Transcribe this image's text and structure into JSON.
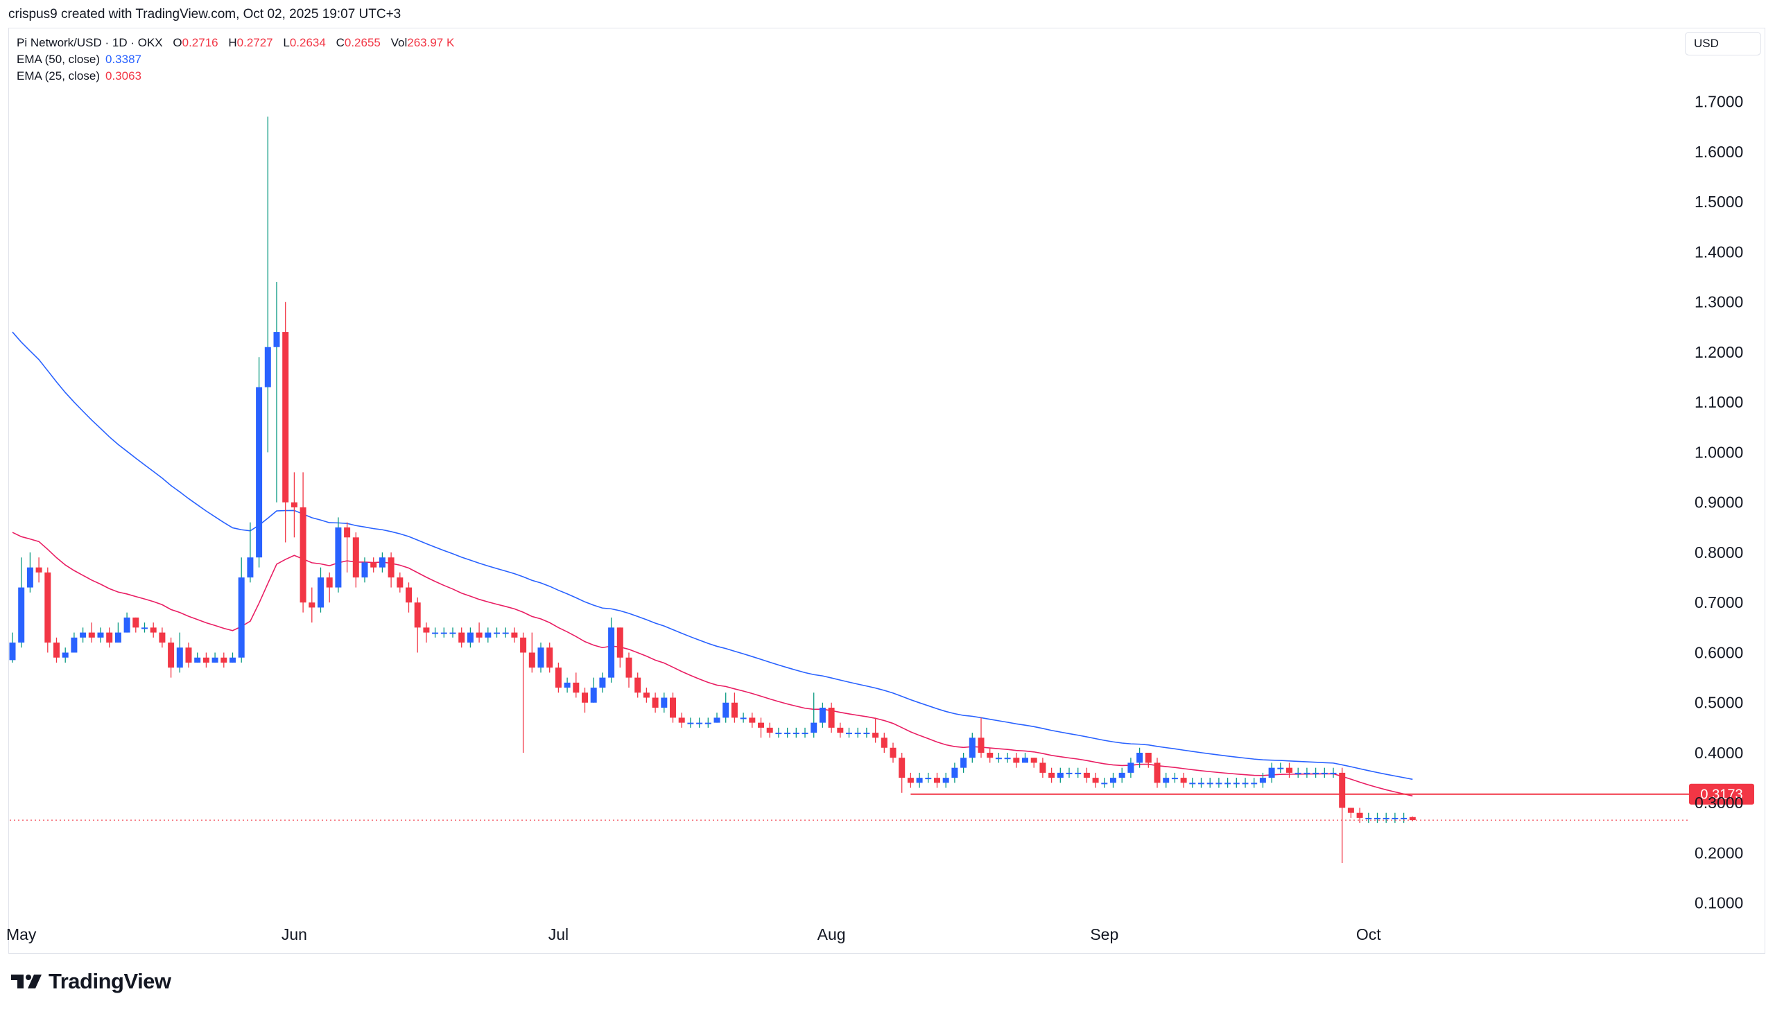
{
  "header": {
    "creator_line": "crispus9 created with TradingView.com, Oct 02, 2025 19:07 UTC+3"
  },
  "legend": {
    "symbol": "Pi Network/USD · 1D · OKX",
    "ohlc": [
      {
        "k": "O",
        "v": "0.2716"
      },
      {
        "k": "H",
        "v": "0.2727"
      },
      {
        "k": "L",
        "v": "0.2634"
      },
      {
        "k": "C",
        "v": "0.2655"
      },
      {
        "k": "Vol",
        "v": "263.97 K"
      }
    ],
    "ema50_label": "EMA (50, close)",
    "ema50_value": "0.3387",
    "ema25_label": "EMA (25, close)",
    "ema25_value": "0.3063"
  },
  "currency_button": "USD",
  "brand": {
    "name": "TradingView"
  },
  "colors": {
    "up": "#2962ff",
    "down": "#f23645",
    "ema50": "#2962ff",
    "ema25": "#e91e63",
    "level_line": "#f23645",
    "axis_text": "#131722"
  },
  "chart_data": {
    "type": "candlestick",
    "title": "Pi Network/USD · 1D · OKX",
    "ylim": [
      0.0,
      1.82
    ],
    "y_ticks": [
      "0.1000",
      "0.2000",
      "0.3000",
      "0.4000",
      "0.5000",
      "0.6000",
      "0.7000",
      "0.8000",
      "0.9000",
      "1.0000",
      "1.1000",
      "1.2000",
      "1.3000",
      "1.4000",
      "1.5000",
      "1.6000",
      "1.7000"
    ],
    "x_ticks": [
      {
        "label": "May",
        "day": 1
      },
      {
        "label": "Jun",
        "day": 32
      },
      {
        "label": "Jul",
        "day": 62
      },
      {
        "label": "Aug",
        "day": 93
      },
      {
        "label": "Sep",
        "day": 124
      },
      {
        "label": "Oct",
        "day": 154
      }
    ],
    "first_day": "Apr 22, 2025",
    "support_level": {
      "value": 0.3173,
      "label": "0.3173",
      "from_day": 102
    },
    "last_price": 0.2655,
    "candles": [
      [
        0.585,
        0.62,
        0.58,
        0.64
      ],
      [
        0.62,
        0.73,
        0.61,
        0.79
      ],
      [
        0.73,
        0.77,
        0.72,
        0.8
      ],
      [
        0.77,
        0.76,
        0.74,
        0.79
      ],
      [
        0.76,
        0.62,
        0.6,
        0.77
      ],
      [
        0.62,
        0.59,
        0.58,
        0.63
      ],
      [
        0.59,
        0.6,
        0.58,
        0.61
      ],
      [
        0.6,
        0.63,
        0.6,
        0.64
      ],
      [
        0.63,
        0.64,
        0.62,
        0.65
      ],
      [
        0.64,
        0.63,
        0.62,
        0.66
      ],
      [
        0.63,
        0.64,
        0.62,
        0.65
      ],
      [
        0.64,
        0.62,
        0.61,
        0.65
      ],
      [
        0.62,
        0.64,
        0.62,
        0.66
      ],
      [
        0.64,
        0.67,
        0.64,
        0.68
      ],
      [
        0.67,
        0.65,
        0.64,
        0.67
      ],
      [
        0.65,
        0.65,
        0.64,
        0.66
      ],
      [
        0.65,
        0.64,
        0.63,
        0.66
      ],
      [
        0.64,
        0.62,
        0.61,
        0.65
      ],
      [
        0.62,
        0.57,
        0.55,
        0.63
      ],
      [
        0.57,
        0.61,
        0.56,
        0.64
      ],
      [
        0.61,
        0.58,
        0.57,
        0.62
      ],
      [
        0.58,
        0.59,
        0.58,
        0.6
      ],
      [
        0.59,
        0.58,
        0.57,
        0.6
      ],
      [
        0.58,
        0.59,
        0.58,
        0.6
      ],
      [
        0.59,
        0.58,
        0.57,
        0.6
      ],
      [
        0.58,
        0.59,
        0.58,
        0.6
      ],
      [
        0.59,
        0.75,
        0.58,
        0.79
      ],
      [
        0.75,
        0.79,
        0.74,
        0.86
      ],
      [
        0.79,
        1.13,
        0.77,
        1.19
      ],
      [
        1.13,
        1.21,
        1.0,
        1.67
      ],
      [
        1.21,
        1.24,
        0.9,
        1.34
      ],
      [
        1.24,
        0.9,
        0.82,
        1.3
      ],
      [
        0.9,
        0.89,
        0.83,
        0.96
      ],
      [
        0.89,
        0.7,
        0.68,
        0.96
      ],
      [
        0.7,
        0.69,
        0.66,
        0.73
      ],
      [
        0.69,
        0.75,
        0.68,
        0.77
      ],
      [
        0.75,
        0.73,
        0.7,
        0.76
      ],
      [
        0.73,
        0.85,
        0.72,
        0.87
      ],
      [
        0.85,
        0.83,
        0.76,
        0.86
      ],
      [
        0.83,
        0.75,
        0.73,
        0.84
      ],
      [
        0.75,
        0.78,
        0.74,
        0.79
      ],
      [
        0.78,
        0.77,
        0.76,
        0.79
      ],
      [
        0.77,
        0.79,
        0.76,
        0.8
      ],
      [
        0.79,
        0.75,
        0.73,
        0.8
      ],
      [
        0.75,
        0.73,
        0.72,
        0.76
      ],
      [
        0.73,
        0.7,
        0.68,
        0.74
      ],
      [
        0.7,
        0.65,
        0.6,
        0.71
      ],
      [
        0.65,
        0.64,
        0.62,
        0.66
      ],
      [
        0.64,
        0.64,
        0.63,
        0.65
      ],
      [
        0.64,
        0.64,
        0.63,
        0.65
      ],
      [
        0.64,
        0.64,
        0.63,
        0.65
      ],
      [
        0.64,
        0.62,
        0.61,
        0.65
      ],
      [
        0.62,
        0.64,
        0.61,
        0.65
      ],
      [
        0.64,
        0.63,
        0.62,
        0.66
      ],
      [
        0.63,
        0.64,
        0.62,
        0.65
      ],
      [
        0.64,
        0.64,
        0.63,
        0.65
      ],
      [
        0.64,
        0.64,
        0.63,
        0.65
      ],
      [
        0.64,
        0.63,
        0.62,
        0.65
      ],
      [
        0.63,
        0.6,
        0.4,
        0.64
      ],
      [
        0.6,
        0.57,
        0.56,
        0.64
      ],
      [
        0.57,
        0.61,
        0.56,
        0.62
      ],
      [
        0.61,
        0.57,
        0.56,
        0.62
      ],
      [
        0.57,
        0.53,
        0.52,
        0.58
      ],
      [
        0.53,
        0.54,
        0.52,
        0.55
      ],
      [
        0.54,
        0.52,
        0.51,
        0.56
      ],
      [
        0.52,
        0.5,
        0.48,
        0.53
      ],
      [
        0.5,
        0.53,
        0.5,
        0.55
      ],
      [
        0.53,
        0.55,
        0.52,
        0.56
      ],
      [
        0.55,
        0.65,
        0.54,
        0.67
      ],
      [
        0.65,
        0.59,
        0.57,
        0.65
      ],
      [
        0.59,
        0.55,
        0.53,
        0.6
      ],
      [
        0.55,
        0.52,
        0.51,
        0.56
      ],
      [
        0.52,
        0.51,
        0.5,
        0.53
      ],
      [
        0.51,
        0.49,
        0.48,
        0.52
      ],
      [
        0.49,
        0.51,
        0.48,
        0.52
      ],
      [
        0.51,
        0.47,
        0.46,
        0.52
      ],
      [
        0.47,
        0.46,
        0.45,
        0.48
      ],
      [
        0.46,
        0.46,
        0.45,
        0.47
      ],
      [
        0.46,
        0.46,
        0.45,
        0.47
      ],
      [
        0.46,
        0.46,
        0.45,
        0.47
      ],
      [
        0.46,
        0.47,
        0.46,
        0.48
      ],
      [
        0.47,
        0.5,
        0.46,
        0.52
      ],
      [
        0.5,
        0.47,
        0.46,
        0.52
      ],
      [
        0.47,
        0.47,
        0.46,
        0.48
      ],
      [
        0.47,
        0.46,
        0.45,
        0.48
      ],
      [
        0.46,
        0.45,
        0.43,
        0.47
      ],
      [
        0.45,
        0.44,
        0.43,
        0.46
      ],
      [
        0.44,
        0.44,
        0.43,
        0.45
      ],
      [
        0.44,
        0.44,
        0.43,
        0.45
      ],
      [
        0.44,
        0.44,
        0.43,
        0.45
      ],
      [
        0.44,
        0.44,
        0.43,
        0.45
      ],
      [
        0.44,
        0.46,
        0.43,
        0.52
      ],
      [
        0.46,
        0.49,
        0.45,
        0.5
      ],
      [
        0.49,
        0.45,
        0.44,
        0.5
      ],
      [
        0.45,
        0.44,
        0.43,
        0.46
      ],
      [
        0.44,
        0.44,
        0.43,
        0.45
      ],
      [
        0.44,
        0.44,
        0.43,
        0.45
      ],
      [
        0.44,
        0.44,
        0.43,
        0.45
      ],
      [
        0.44,
        0.43,
        0.42,
        0.47
      ],
      [
        0.43,
        0.41,
        0.4,
        0.44
      ],
      [
        0.41,
        0.39,
        0.38,
        0.42
      ],
      [
        0.39,
        0.35,
        0.32,
        0.4
      ],
      [
        0.35,
        0.34,
        0.33,
        0.36
      ],
      [
        0.34,
        0.35,
        0.33,
        0.36
      ],
      [
        0.35,
        0.35,
        0.34,
        0.36
      ],
      [
        0.35,
        0.34,
        0.33,
        0.36
      ],
      [
        0.34,
        0.35,
        0.33,
        0.36
      ],
      [
        0.35,
        0.37,
        0.34,
        0.38
      ],
      [
        0.37,
        0.39,
        0.36,
        0.4
      ],
      [
        0.39,
        0.43,
        0.38,
        0.44
      ],
      [
        0.43,
        0.4,
        0.39,
        0.47
      ],
      [
        0.4,
        0.39,
        0.38,
        0.41
      ],
      [
        0.39,
        0.39,
        0.38,
        0.4
      ],
      [
        0.39,
        0.39,
        0.38,
        0.4
      ],
      [
        0.39,
        0.38,
        0.37,
        0.4
      ],
      [
        0.38,
        0.39,
        0.38,
        0.4
      ],
      [
        0.39,
        0.38,
        0.37,
        0.39
      ],
      [
        0.38,
        0.36,
        0.35,
        0.39
      ],
      [
        0.36,
        0.35,
        0.34,
        0.37
      ],
      [
        0.35,
        0.36,
        0.34,
        0.37
      ],
      [
        0.36,
        0.36,
        0.35,
        0.37
      ],
      [
        0.36,
        0.36,
        0.35,
        0.37
      ],
      [
        0.36,
        0.35,
        0.34,
        0.37
      ],
      [
        0.35,
        0.34,
        0.33,
        0.36
      ],
      [
        0.34,
        0.34,
        0.33,
        0.35
      ],
      [
        0.34,
        0.35,
        0.33,
        0.36
      ],
      [
        0.35,
        0.36,
        0.34,
        0.37
      ],
      [
        0.36,
        0.38,
        0.35,
        0.39
      ],
      [
        0.38,
        0.4,
        0.37,
        0.41
      ],
      [
        0.4,
        0.38,
        0.37,
        0.4
      ],
      [
        0.38,
        0.34,
        0.33,
        0.39
      ],
      [
        0.34,
        0.35,
        0.33,
        0.36
      ],
      [
        0.35,
        0.35,
        0.34,
        0.36
      ],
      [
        0.35,
        0.34,
        0.33,
        0.36
      ],
      [
        0.34,
        0.34,
        0.33,
        0.35
      ],
      [
        0.34,
        0.34,
        0.33,
        0.35
      ],
      [
        0.34,
        0.34,
        0.33,
        0.35
      ],
      [
        0.34,
        0.34,
        0.33,
        0.35
      ],
      [
        0.34,
        0.34,
        0.33,
        0.35
      ],
      [
        0.34,
        0.34,
        0.33,
        0.35
      ],
      [
        0.34,
        0.34,
        0.33,
        0.35
      ],
      [
        0.34,
        0.34,
        0.33,
        0.35
      ],
      [
        0.34,
        0.35,
        0.33,
        0.36
      ],
      [
        0.35,
        0.37,
        0.34,
        0.38
      ],
      [
        0.37,
        0.37,
        0.36,
        0.38
      ],
      [
        0.37,
        0.36,
        0.35,
        0.38
      ],
      [
        0.36,
        0.36,
        0.35,
        0.37
      ],
      [
        0.36,
        0.36,
        0.35,
        0.37
      ],
      [
        0.36,
        0.36,
        0.35,
        0.37
      ],
      [
        0.36,
        0.36,
        0.35,
        0.37
      ],
      [
        0.36,
        0.36,
        0.35,
        0.37
      ],
      [
        0.36,
        0.29,
        0.18,
        0.37
      ],
      [
        0.29,
        0.28,
        0.27,
        0.29
      ],
      [
        0.28,
        0.27,
        0.26,
        0.29
      ],
      [
        0.27,
        0.27,
        0.26,
        0.28
      ],
      [
        0.27,
        0.27,
        0.26,
        0.28
      ],
      [
        0.27,
        0.27,
        0.26,
        0.28
      ],
      [
        0.27,
        0.27,
        0.26,
        0.28
      ],
      [
        0.27,
        0.27,
        0.26,
        0.28
      ],
      [
        0.2716,
        0.2655,
        0.2634,
        0.2727
      ]
    ]
  }
}
